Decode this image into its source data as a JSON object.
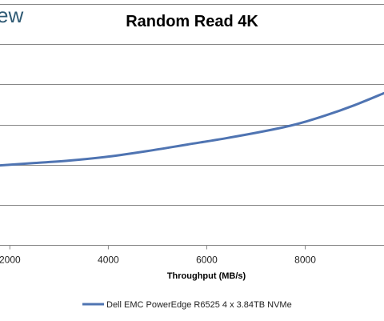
{
  "logo_fragment": "ew",
  "chart_data": {
    "type": "line",
    "title": "Random Read 4K",
    "xlabel": "Throughput (MB/s)",
    "ylabel": "",
    "xlim": [
      1800,
      9600
    ],
    "ylim": [
      0,
      6
    ],
    "x_ticks": [
      2000,
      4000,
      6000,
      8000
    ],
    "x_tick_labels": [
      "2000",
      "4000",
      "6000",
      "8000"
    ],
    "y_gridlines": [
      1,
      2,
      3,
      4,
      5,
      6
    ],
    "grid": "horizontal",
    "legend_position": "bottom",
    "series": [
      {
        "name": "Dell EMC PowerEdge R6525 4 x 3.84TB NVMe",
        "color": "#4f74b2",
        "x": [
          1800,
          2500,
          3200,
          4000,
          4800,
          5600,
          6400,
          7200,
          7800,
          8400,
          9000,
          9600
        ],
        "y": [
          1.98,
          2.04,
          2.1,
          2.2,
          2.34,
          2.5,
          2.66,
          2.84,
          3.0,
          3.22,
          3.48,
          3.78
        ]
      }
    ]
  },
  "colors": {
    "grid": "#878787",
    "axis": "#878787",
    "logo": "#2f5a74"
  }
}
